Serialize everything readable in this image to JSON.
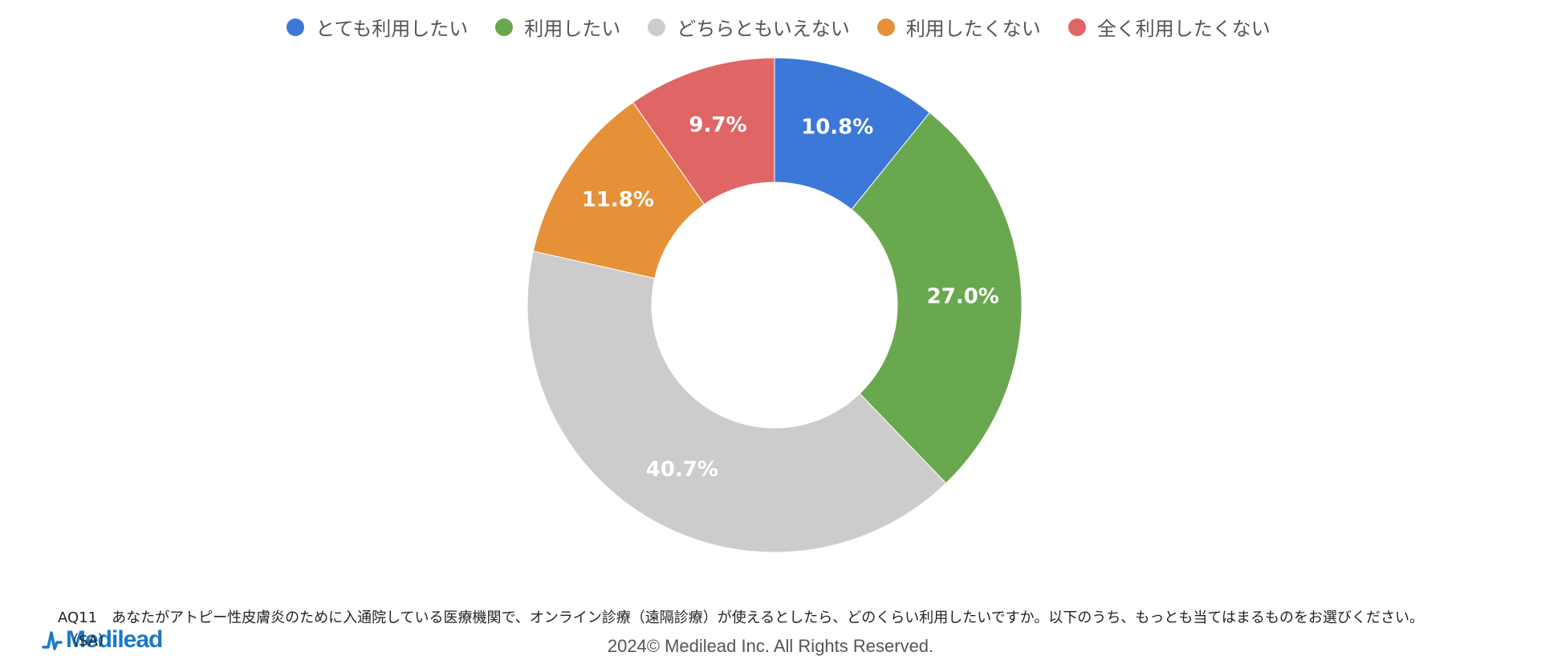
{
  "chart_data": {
    "type": "pie",
    "title": "",
    "categories": [
      "とても利用したい",
      "利用したい",
      "どちらともいえない",
      "利用したくない",
      "全く利用したくない"
    ],
    "values": [
      10.8,
      27.0,
      40.7,
      11.8,
      9.7
    ],
    "value_labels": [
      "10.8%",
      "27.0%",
      "40.7%",
      "11.8%",
      "9.7%"
    ],
    "colors": [
      "#3c78d8",
      "#6aa84f",
      "#cccccc",
      "#e69138",
      "#e06666"
    ],
    "legend_position": "top",
    "donut": true
  },
  "legend": {
    "items": [
      {
        "label": "とても利用したい",
        "color": "#3c78d8"
      },
      {
        "label": "利用したい",
        "color": "#6aa84f"
      },
      {
        "label": "どちらともいえない",
        "color": "#cccccc"
      },
      {
        "label": "利用したくない",
        "color": "#e69138"
      },
      {
        "label": "全く利用したくない",
        "color": "#e06666"
      }
    ]
  },
  "footnote": {
    "question": "AQ11　あなたがアトピー性皮膚炎のために入通院している医療機関で、オンライン診療（遠隔診療）が使えるとしたら、どのくらい利用したいですか。以下のうち、もっとも当てはまるものをお選びください。",
    "type": "（SA）"
  },
  "brand": {
    "logo_text": "Medilead",
    "logo_color": "#1b78c8",
    "logo_icon": "pulse-icon"
  },
  "copyright": "2024© Medilead Inc. All Rights Reserved."
}
